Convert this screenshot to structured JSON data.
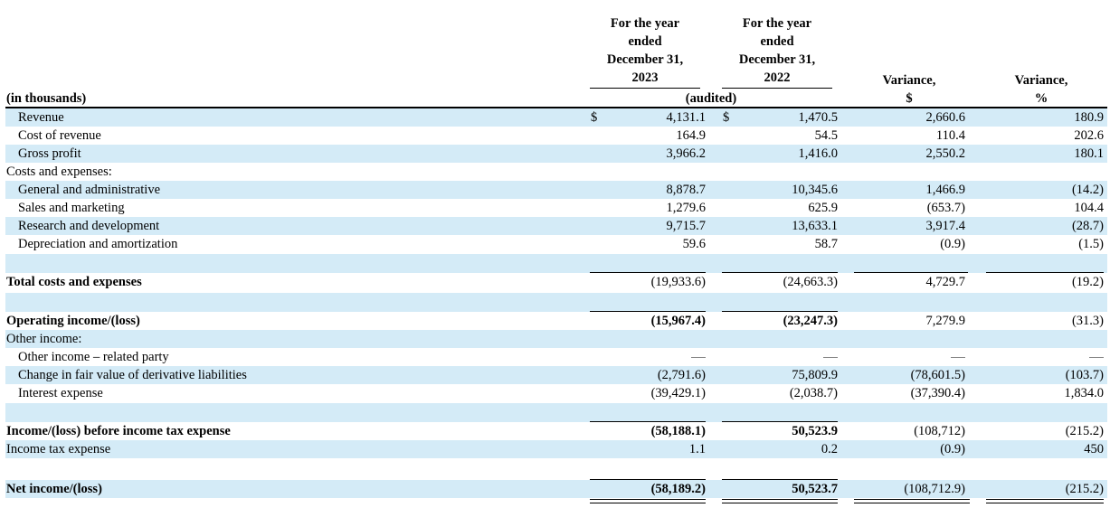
{
  "header": {
    "col2023": [
      "For the year",
      "ended",
      "December 31,",
      "2023"
    ],
    "col2022": [
      "For the year",
      "ended",
      "December 31,",
      "2022"
    ],
    "variance_dollar": [
      "Variance,",
      "$"
    ],
    "variance_pct": [
      "Variance,",
      "%"
    ],
    "audited": "(audited)",
    "units": "(in thousands)"
  },
  "currency_symbol": "$",
  "rows": [
    {
      "label": "Revenue",
      "c2023": "4,131.1",
      "c2022": "1,470.5",
      "var": "2,660.6",
      "pct": "180.9"
    },
    {
      "label": "Cost of revenue",
      "c2023": "164.9",
      "c2022": "54.5",
      "var": "110.4",
      "pct": "202.6"
    },
    {
      "label": "Gross profit",
      "c2023": "3,966.2",
      "c2022": "1,416.0",
      "var": "2,550.2",
      "pct": "180.1"
    },
    {
      "label": "Costs and expenses:"
    },
    {
      "label": "General and administrative",
      "c2023": "8,878.7",
      "c2022": "10,345.6",
      "var": "1,466.9",
      "pct": "(14.2)"
    },
    {
      "label": "Sales and marketing",
      "c2023": "1,279.6",
      "c2022": "625.9",
      "var": "(653.7)",
      "pct": "104.4"
    },
    {
      "label": "Research and development",
      "c2023": "9,715.7",
      "c2022": "13,633.1",
      "var": "3,917.4",
      "pct": "(28.7)"
    },
    {
      "label": "Depreciation and amortization",
      "c2023": "59.6",
      "c2022": "58.7",
      "var": "(0.9)",
      "pct": "(1.5)"
    },
    {
      "label": "Total costs and expenses",
      "c2023": "(19,933.6)",
      "c2022": "(24,663.3)",
      "var": "4,729.7",
      "pct": "(19.2)"
    },
    {
      "label": "Operating income/(loss)",
      "c2023": "(15,967.4)",
      "c2022": "(23,247.3)",
      "var": "7,279.9",
      "pct": "(31.3)"
    },
    {
      "label": "Other income:"
    },
    {
      "label": "Other income – related party"
    },
    {
      "label": "Change in fair value of derivative liabilities",
      "c2023": "(2,791.6)",
      "c2022": "75,809.9",
      "var": "(78,601.5)",
      "pct": "(103.7)"
    },
    {
      "label": "Interest expense",
      "c2023": "(39,429.1)",
      "c2022": "(2,038.7)",
      "var": "(37,390.4)",
      "pct": "1,834.0"
    },
    {
      "label": "Income/(loss) before income tax expense",
      "c2023": "(58,188.1)",
      "c2022": "50,523.9",
      "var": "(108,712)",
      "pct": "(215.2)"
    },
    {
      "label": "Income tax expense",
      "c2023": "1.1",
      "c2022": "0.2",
      "var": "(0.9)",
      "pct": "450"
    },
    {
      "label": "Net income/(loss)",
      "c2023": "(58,189.2)",
      "c2022": "50,523.7",
      "var": "(108,712.9)",
      "pct": "(215.2)"
    }
  ]
}
